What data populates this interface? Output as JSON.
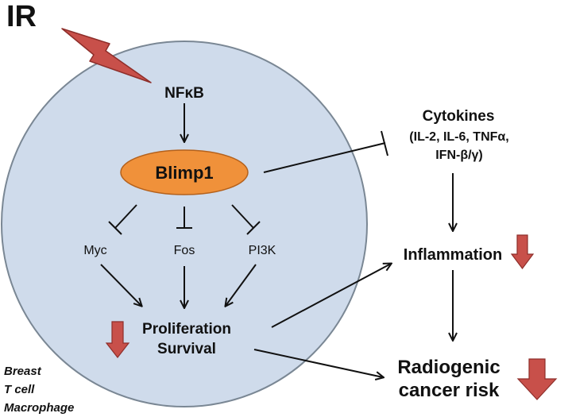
{
  "title": "IR",
  "nodes": {
    "nfkb": "NFκB",
    "blimp1": "Blimp1",
    "myc": "Myc",
    "fos": "Fos",
    "pi3k": "PI3K",
    "proliferation": "Proliferation",
    "survival": "Survival",
    "cytokines_title": "Cytokines",
    "cytokines_line1": "(IL-2, IL-6, TNFα,",
    "cytokines_line2": "IFN-β/γ)",
    "inflammation": "Inflammation",
    "cancer_line1": "Radiogenic",
    "cancer_line2": "cancer risk"
  },
  "cell_types": [
    "Breast",
    "T cell",
    "Macrophage"
  ],
  "colors": {
    "cell_fill": "#cfdbeb",
    "cell_stroke": "#7a8794",
    "blimp1_fill": "#f0913a",
    "blimp1_stroke": "#b4611c",
    "down_arrow_fill": "#c8504a",
    "down_arrow_stroke": "#8e2e2a",
    "lightning_fill": "#c8504a",
    "line": "#111111"
  },
  "icons": [
    "lightning-bolt-icon",
    "down-arrow-icon"
  ]
}
